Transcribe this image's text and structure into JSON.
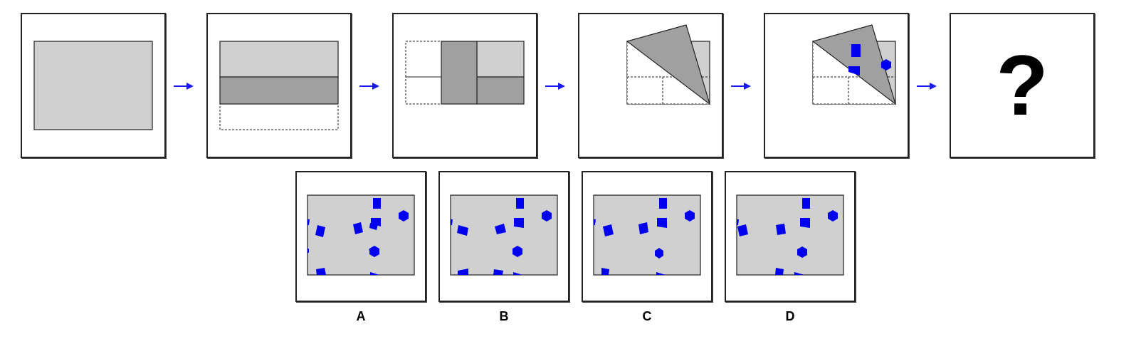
{
  "colors": {
    "paper_light": "#d0d0d0",
    "paper_dark": "#a0a0a0",
    "hole": "#0000ee",
    "arrow": "#1a1aee",
    "outline": "#222222"
  },
  "steps": [
    {
      "name": "unfolded-paper"
    },
    {
      "name": "fold-1-bottom-up"
    },
    {
      "name": "fold-2-left-over"
    },
    {
      "name": "fold-3-diagonal"
    },
    {
      "name": "punch-holes"
    },
    {
      "name": "question",
      "text": "?"
    }
  ],
  "options": [
    {
      "label": "A"
    },
    {
      "label": "B"
    },
    {
      "label": "C"
    },
    {
      "label": "D"
    }
  ]
}
